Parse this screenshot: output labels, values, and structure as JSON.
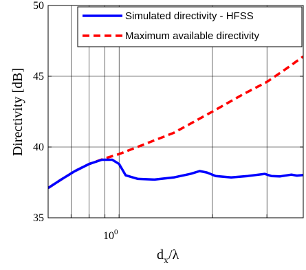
{
  "chart_data": {
    "type": "line",
    "xscale": "log",
    "xlim": [
      0.59,
      3.93
    ],
    "ylim": [
      35,
      50
    ],
    "yticks": [
      35,
      40,
      45,
      50
    ],
    "xticks_minor": [
      0.7,
      0.8,
      0.9,
      1,
      2,
      3
    ],
    "xtick_major_label": {
      "base": "10",
      "exponent": "0"
    },
    "xlabel": {
      "main": "d",
      "sub": "x",
      "suffix": "/λ"
    },
    "ylabel": "Directivity [dB]",
    "grid": true,
    "legend_position": "top-right",
    "series": [
      {
        "name": "Simulated directivity - HFSS",
        "color": "#0000ff",
        "dash": "solid",
        "points": [
          [
            0.59,
            37.1
          ],
          [
            0.65,
            37.7
          ],
          [
            0.72,
            38.3
          ],
          [
            0.8,
            38.8
          ],
          [
            0.88,
            39.1
          ],
          [
            0.95,
            39.1
          ],
          [
            1.0,
            38.8
          ],
          [
            1.05,
            38.0
          ],
          [
            1.15,
            37.75
          ],
          [
            1.3,
            37.7
          ],
          [
            1.5,
            37.85
          ],
          [
            1.7,
            38.1
          ],
          [
            1.82,
            38.3
          ],
          [
            1.92,
            38.2
          ],
          [
            2.05,
            37.95
          ],
          [
            2.3,
            37.85
          ],
          [
            2.6,
            37.95
          ],
          [
            2.95,
            38.1
          ],
          [
            3.1,
            37.95
          ],
          [
            3.3,
            37.92
          ],
          [
            3.6,
            38.05
          ],
          [
            3.75,
            37.98
          ],
          [
            3.93,
            38.02
          ]
        ]
      },
      {
        "name": "Maximum available directivity",
        "color": "#ff0000",
        "dash": "dashed",
        "points": [
          [
            0.59,
            37.1
          ],
          [
            0.65,
            37.7
          ],
          [
            0.72,
            38.3
          ],
          [
            0.8,
            38.8
          ],
          [
            0.9,
            39.2
          ],
          [
            1.0,
            39.5
          ],
          [
            1.5,
            41.0
          ],
          [
            2.0,
            42.5
          ],
          [
            2.5,
            43.7
          ],
          [
            3.0,
            44.6
          ],
          [
            3.5,
            45.6
          ],
          [
            3.93,
            46.4
          ]
        ]
      }
    ]
  }
}
